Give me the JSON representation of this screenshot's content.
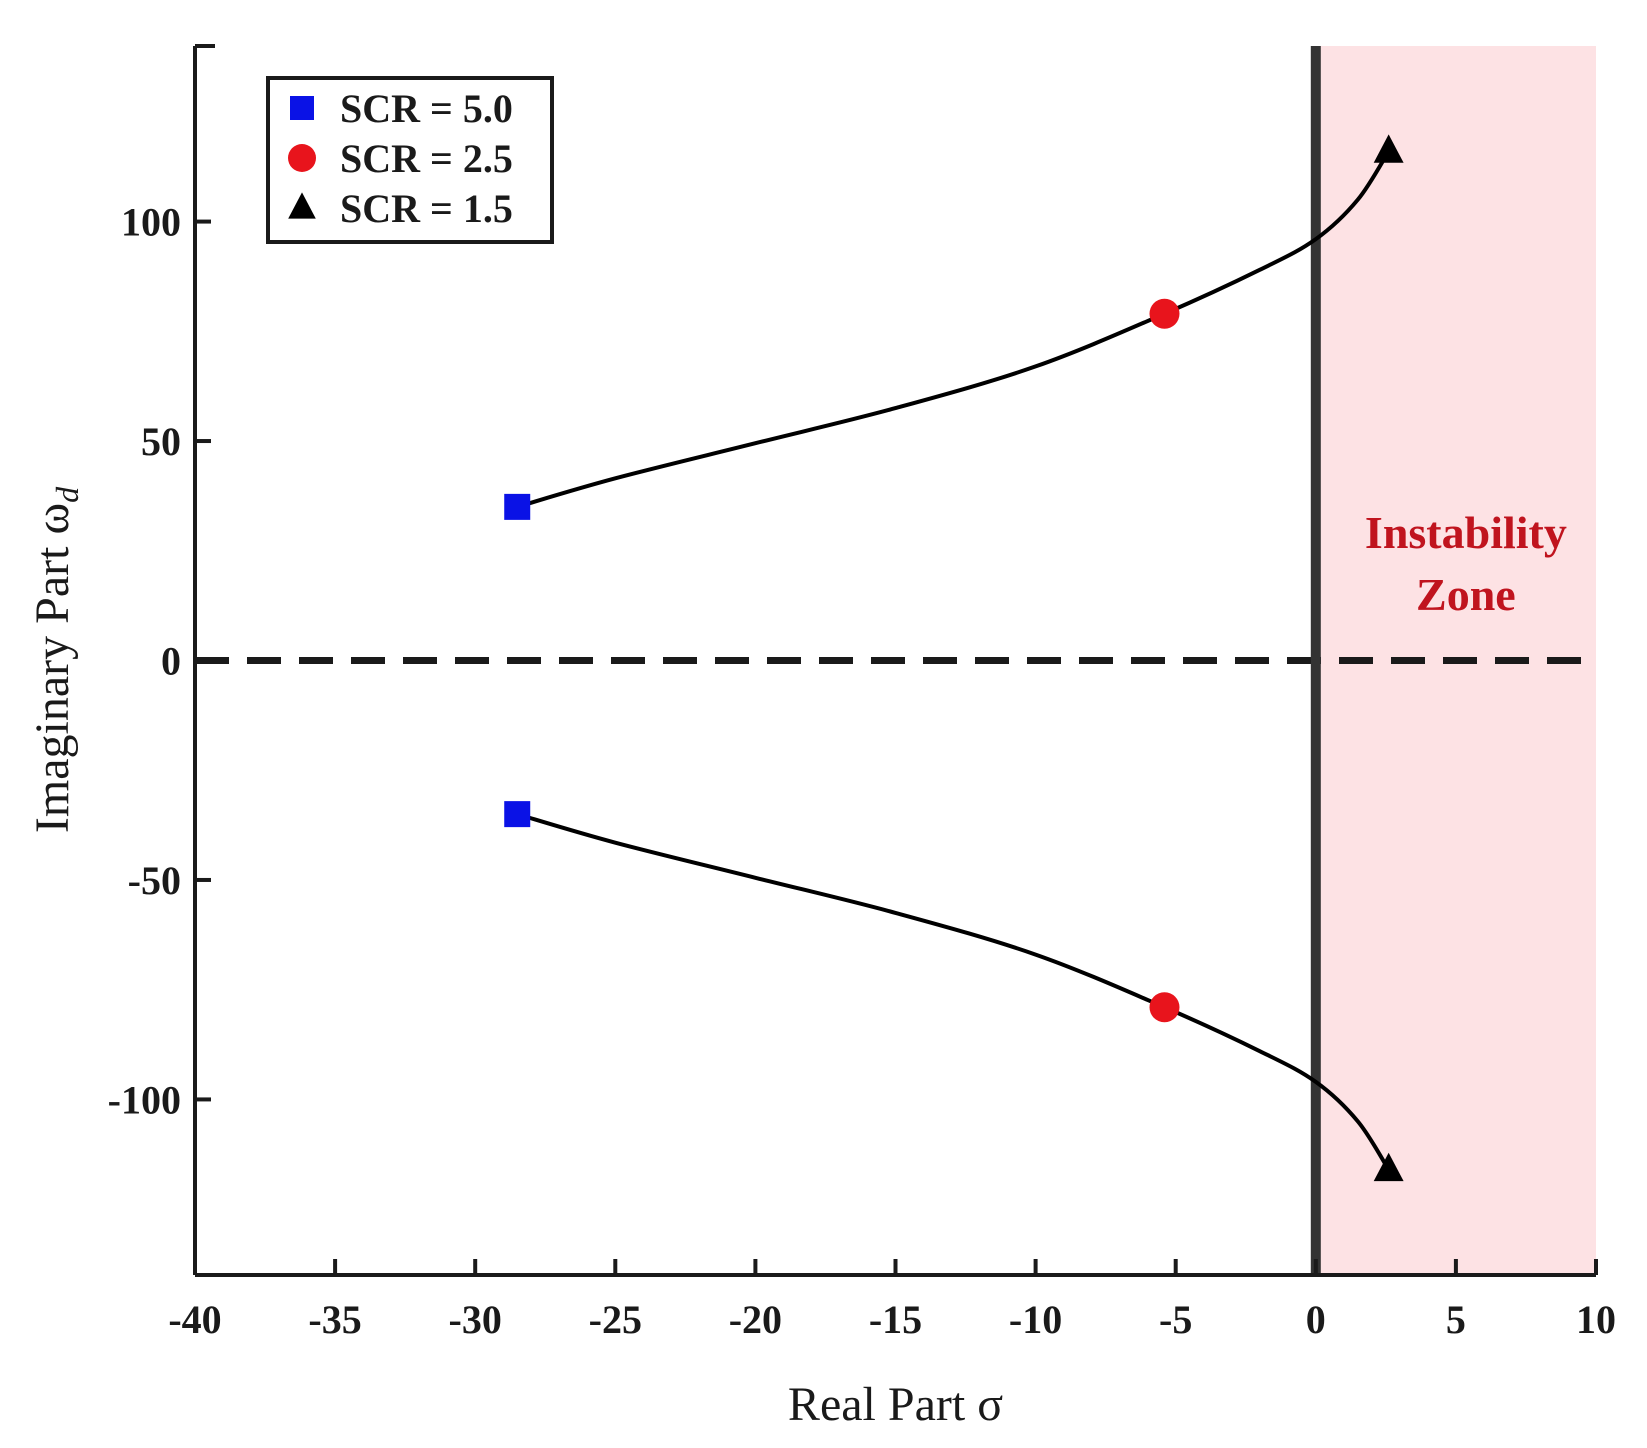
{
  "chart_data": {
    "type": "scatter",
    "title": "",
    "xlabel": "Real Part σ",
    "ylabel_main": "Imaginary Part ω",
    "ylabel_subscript": "d",
    "xlim": [
      -40,
      10
    ],
    "ylim": [
      -140,
      140
    ],
    "xticks": [
      -40,
      -35,
      -30,
      -25,
      -20,
      -15,
      -10,
      -5,
      0,
      5,
      10
    ],
    "xtick_labels": [
      "-40",
      "-35",
      "-30",
      "-25",
      "-20",
      "-15",
      "-10",
      "-5",
      "0",
      "5",
      "10"
    ],
    "yticks": [
      100,
      50,
      0,
      -50,
      -100
    ],
    "ytick_labels": [
      "100",
      "50",
      "0",
      "-50",
      "-100"
    ],
    "grid": false,
    "legend_position": "top-left",
    "series": [
      {
        "name": "SCR = 5.0",
        "marker": "square",
        "color": "#0a12e6",
        "points": [
          [
            -28.5,
            35
          ],
          [
            -28.5,
            -35
          ]
        ]
      },
      {
        "name": "SCR = 2.5",
        "marker": "circle",
        "color": "#e8141c",
        "points": [
          [
            -5.4,
            79
          ],
          [
            -5.4,
            -79
          ]
        ]
      },
      {
        "name": "SCR = 1.5",
        "marker": "triangle",
        "color": "#000000",
        "points": [
          [
            2.6,
            116
          ],
          [
            2.6,
            -116
          ]
        ]
      }
    ],
    "loci": [
      {
        "x": [
          -28.5,
          -25,
          -20,
          -15,
          -10,
          -5.4,
          -2,
          0,
          1.5,
          2.6
        ],
        "y": [
          35,
          41.5,
          49.5,
          57.5,
          67,
          79,
          89,
          96,
          105,
          116
        ]
      },
      {
        "x": [
          -28.5,
          -25,
          -20,
          -15,
          -10,
          -5.4,
          -2,
          0,
          1.5,
          2.6
        ],
        "y": [
          -35,
          -41.5,
          -49.5,
          -57.5,
          -67,
          -79,
          -89,
          -96,
          -105,
          -116
        ]
      }
    ],
    "stability_boundary_x": 0,
    "instability_region": {
      "x_from": 0,
      "x_to": 10,
      "color": "#fde2e4"
    },
    "annotations": [
      "Instability",
      "Zone"
    ],
    "annotation_color": "#c0141e"
  }
}
